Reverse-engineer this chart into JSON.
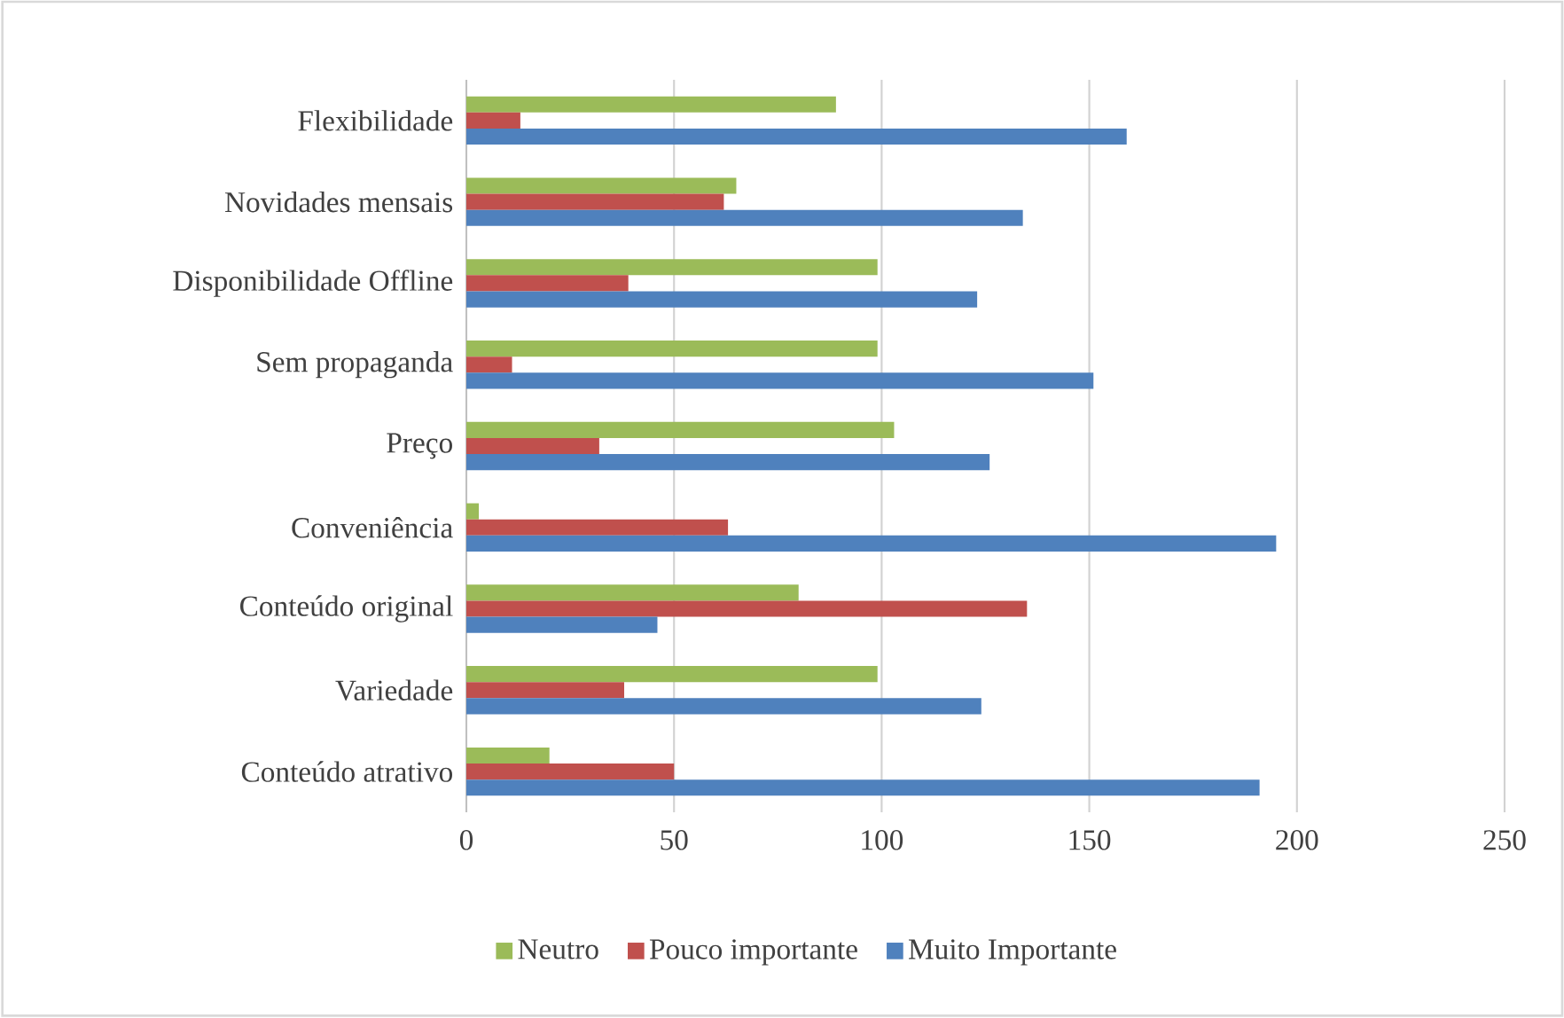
{
  "chart_data": {
    "type": "bar",
    "orientation": "horizontal",
    "categories": [
      "Flexibilidade",
      "Novidades mensais",
      "Disponibilidade Offline",
      "Sem propaganda",
      "Preço",
      "Conveniência",
      "Conteúdo original",
      "Variedade",
      "Conteúdo atrativo"
    ],
    "series": [
      {
        "name": "Neutro",
        "color": "#9bbb59",
        "values": [
          89,
          65,
          99,
          99,
          103,
          3,
          80,
          99,
          20
        ]
      },
      {
        "name": "Pouco importante",
        "color": "#c0504d",
        "values": [
          13,
          62,
          39,
          11,
          32,
          63,
          135,
          38,
          50
        ]
      },
      {
        "name": "Muito Importante",
        "color": "#4f81bd",
        "values": [
          159,
          134,
          123,
          151,
          126,
          195,
          46,
          124,
          191
        ]
      }
    ],
    "xlim": [
      0,
      250
    ],
    "xticks": [
      0,
      50,
      100,
      150,
      200,
      250
    ],
    "grid": "x",
    "legend": "bottom"
  }
}
